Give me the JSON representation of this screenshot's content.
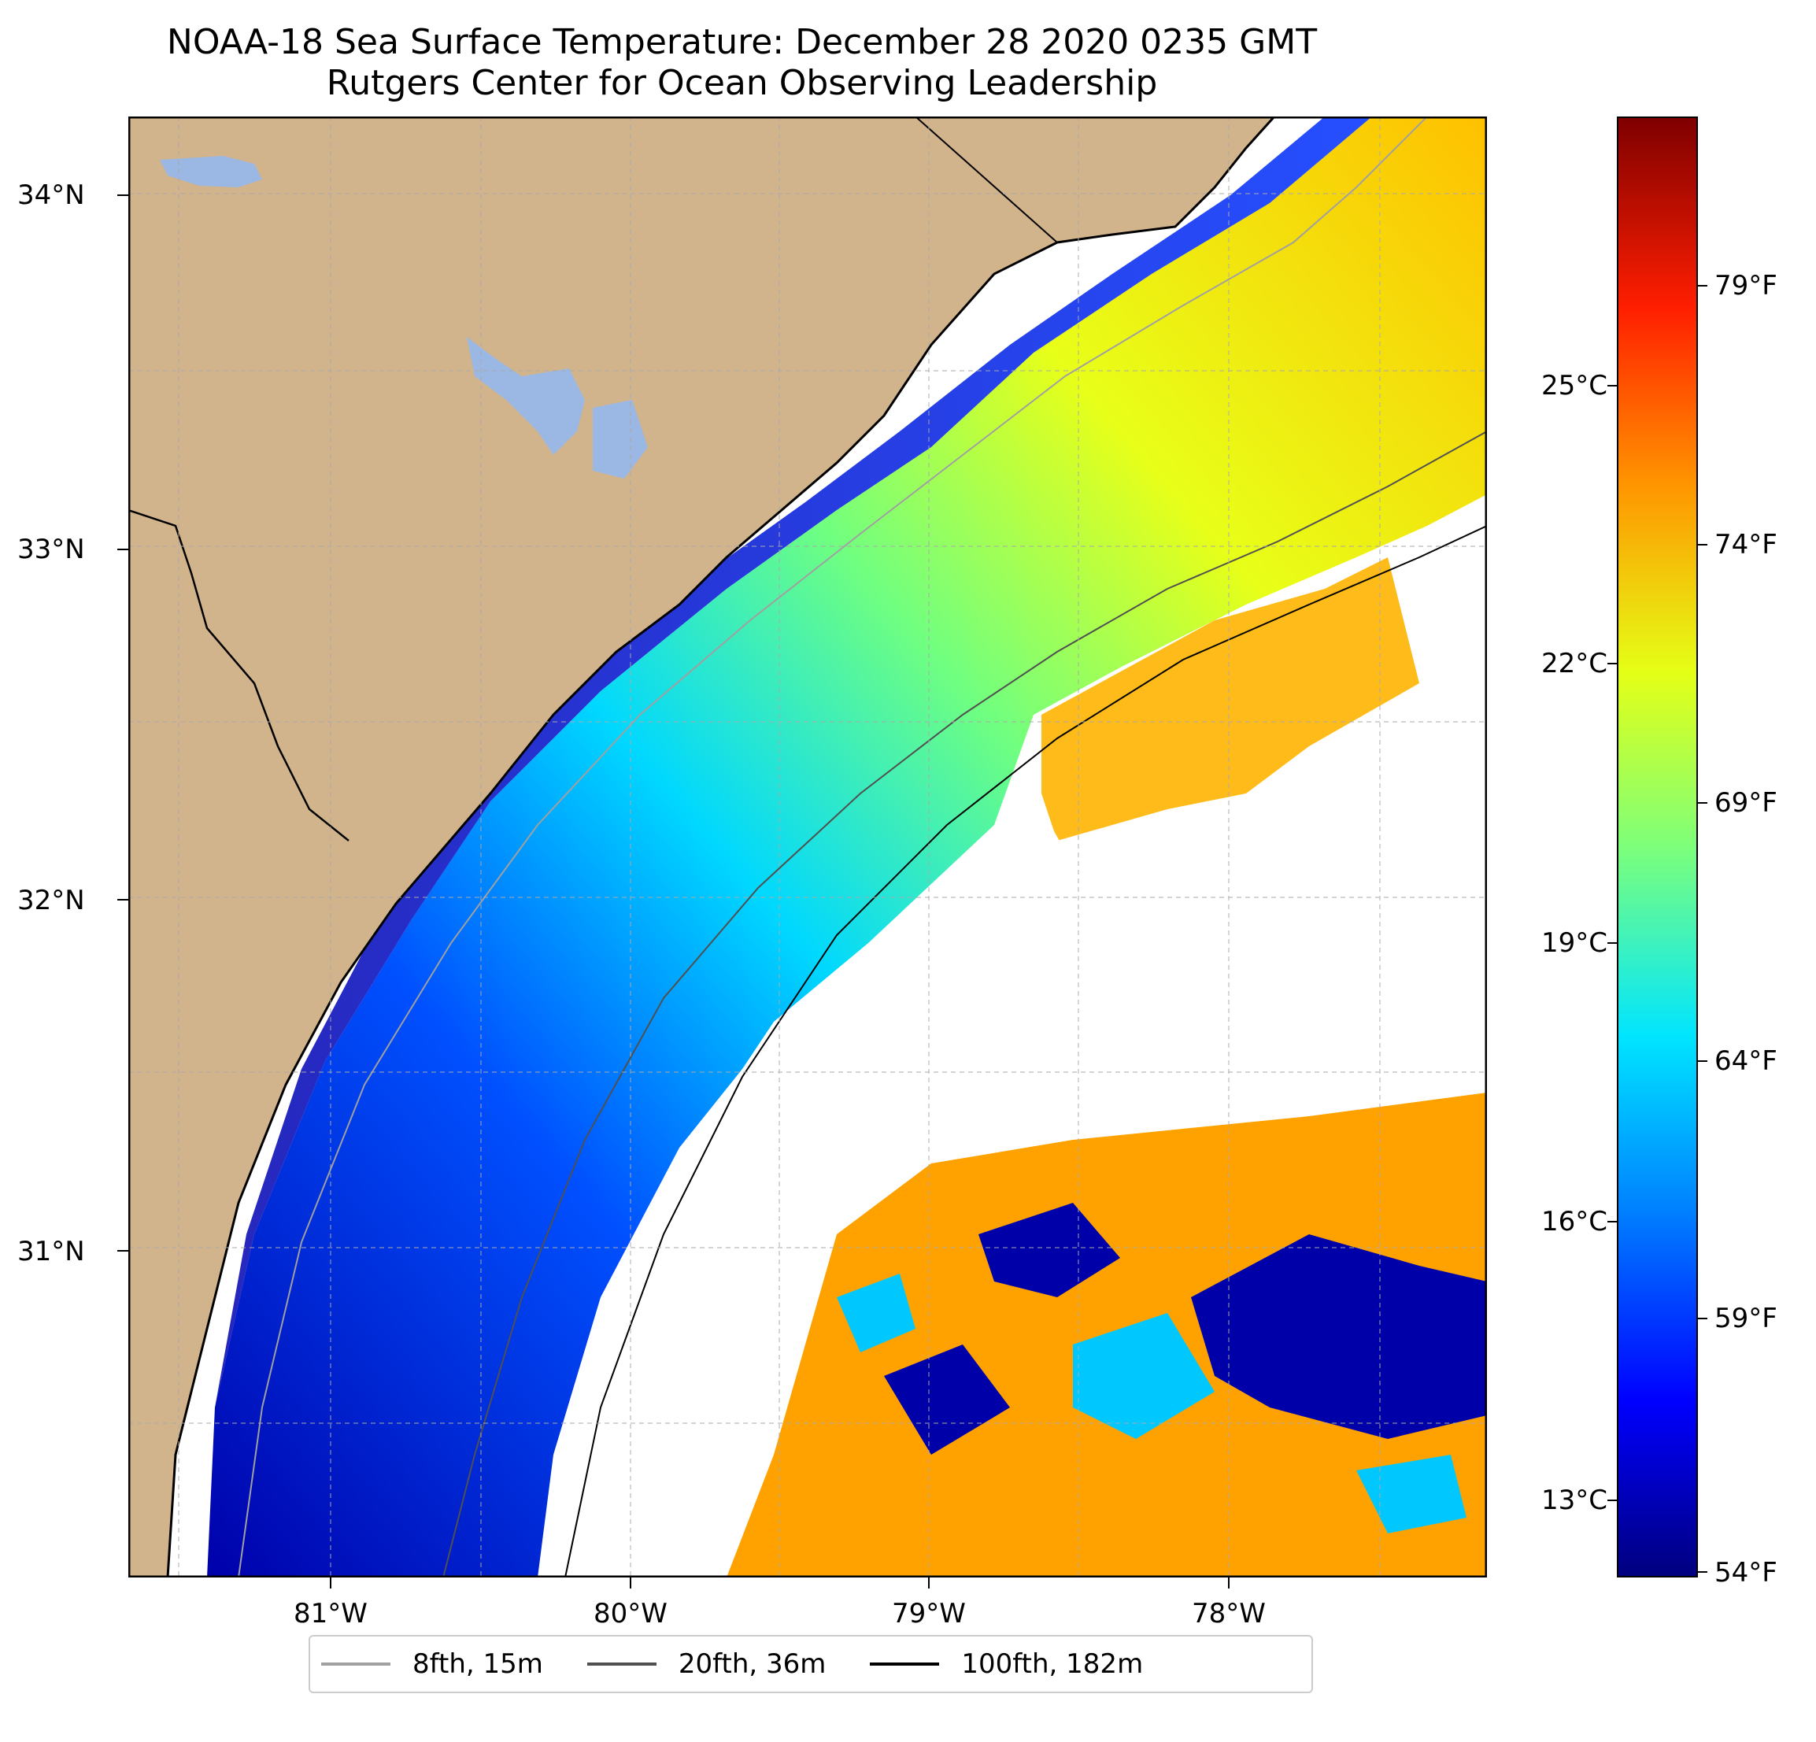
{
  "title": "NOAA-18 Sea Surface Temperature: December 28 2020 0235 GMT",
  "subtitle": "Rutgers Center for Ocean Observing Leadership",
  "map": {
    "lat_labels": [
      "34°N",
      "33°N",
      "32°N",
      "31°N"
    ],
    "lon_labels": [
      "81°W",
      "80°W",
      "79°W",
      "78°W"
    ],
    "colors": {
      "land": "#d2b48c",
      "lake": "#9ab8e3",
      "no_data": "#ffffff",
      "grid": "#aaaaaa"
    }
  },
  "colorbar": {
    "celsius_labels": [
      "25°C",
      "22°C",
      "19°C",
      "16°C",
      "13°C"
    ],
    "fahrenheit_labels": [
      "79°F",
      "74°F",
      "69°F",
      "64°F",
      "59°F",
      "54°F"
    ]
  },
  "legend": {
    "items": [
      {
        "label": "8fth, 15m",
        "color": "#a0a0a0"
      },
      {
        "label": "20fth, 36m",
        "color": "#505050"
      },
      {
        "label": "100fth, 182m",
        "color": "#000000"
      }
    ]
  }
}
